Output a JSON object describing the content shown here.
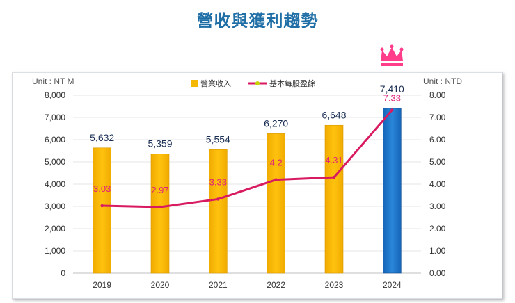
{
  "title": "營收與獲利趨勢",
  "legend": {
    "revenue": "營業收入",
    "eps": "基本每股盈餘"
  },
  "units": {
    "left": "Unit : NT M",
    "right": "Unit : NTD"
  },
  "colors": {
    "title": "#1f6fa6",
    "bar_gold": "#f5b800",
    "bar_blue": "#1a6fc2",
    "line": "#d81b60",
    "crown": "#ff3d8b"
  },
  "chart_data": {
    "type": "bar+line",
    "categories": [
      "2019",
      "2020",
      "2021",
      "2022",
      "2023",
      "2024"
    ],
    "series": [
      {
        "name": "營業收入",
        "type": "bar",
        "axis": "left",
        "values": [
          5632,
          5359,
          5554,
          6270,
          6648,
          7410
        ],
        "labels": [
          "5,632",
          "5,359",
          "5,554",
          "6,270",
          "6,648",
          "7,410"
        ]
      },
      {
        "name": "基本每股盈餘",
        "type": "line",
        "axis": "right",
        "values": [
          3.03,
          2.97,
          3.33,
          4.2,
          4.31,
          7.33
        ],
        "labels": [
          "3.03",
          "2.97",
          "3.33",
          "4.2",
          "4.31",
          "7.33"
        ]
      }
    ],
    "left_axis": {
      "ylim": [
        0,
        8000
      ],
      "ticks": [
        "0",
        "1,000",
        "2,000",
        "3,000",
        "4,000",
        "5,000",
        "6,000",
        "7,000",
        "8,000"
      ]
    },
    "right_axis": {
      "ylim": [
        0,
        8
      ],
      "ticks": [
        "0.00",
        "1.00",
        "2.00",
        "3.00",
        "4.00",
        "5.00",
        "6.00",
        "7.00",
        "8.00"
      ]
    },
    "highlight": "2024",
    "grid": true,
    "legend_position": "top-center"
  }
}
